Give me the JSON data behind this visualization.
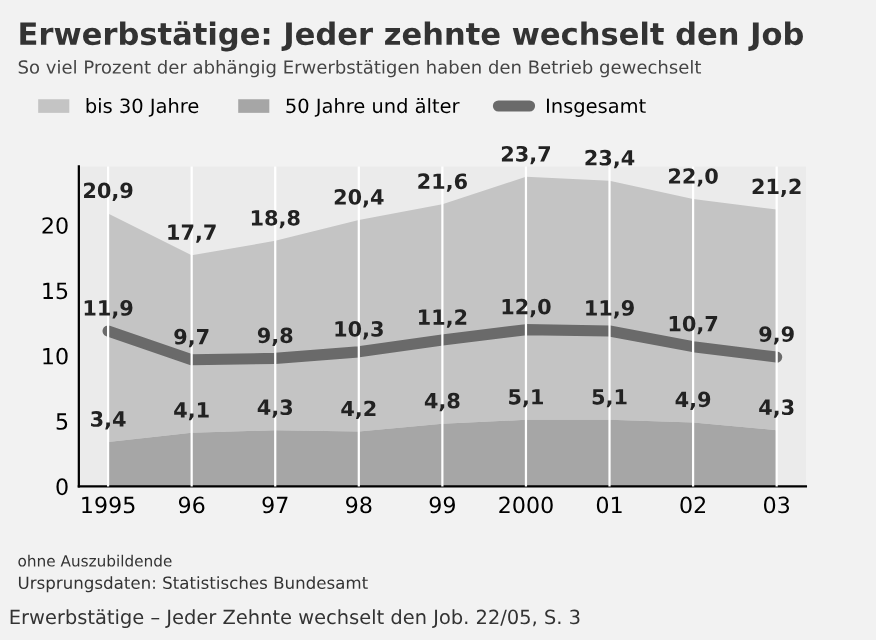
{
  "chart_data": {
    "type": "area",
    "title": "Erwerbstätige: Jeder zehnte wechselt den Job",
    "subtitle": "So viel Prozent der abhängig Erwerbstätigen haben den Betrieb gewechselt",
    "categories": [
      "1995",
      "96",
      "97",
      "98",
      "99",
      "2000",
      "01",
      "02",
      "03"
    ],
    "series": [
      {
        "name": "bis 30 Jahre",
        "color": "#c4c4c4",
        "values": [
          20.9,
          17.7,
          18.8,
          20.4,
          21.6,
          23.7,
          23.4,
          22.0,
          21.2
        ],
        "value_labels": [
          "20,9",
          "17,7",
          "18,8",
          "20,4",
          "21,6",
          "23,7",
          "23,4",
          "22,0",
          "21,2"
        ]
      },
      {
        "name": "50 Jahre und älter",
        "color": "#a6a6a6",
        "values": [
          3.4,
          4.1,
          4.3,
          4.2,
          4.8,
          5.1,
          5.1,
          4.9,
          4.3
        ],
        "value_labels": [
          "3,4",
          "4,1",
          "4,3",
          "4,2",
          "4,8",
          "5,1",
          "5,1",
          "4,9",
          "4,3"
        ]
      },
      {
        "name": "Insgesamt",
        "type": "line",
        "color": "#6a6a6a",
        "values": [
          11.9,
          9.7,
          9.8,
          10.3,
          11.2,
          12.0,
          11.9,
          10.7,
          9.9
        ],
        "value_labels": [
          "11,9",
          "9,7",
          "9,8",
          "10,3",
          "11,2",
          "12,0",
          "11,9",
          "10,7",
          "9,9"
        ]
      }
    ],
    "ylim": [
      0,
      24.5
    ],
    "yticks": [
      0,
      5,
      10,
      15,
      20
    ],
    "grid": "x",
    "legend": "top left",
    "annotations": [
      "ohne Auszubildende",
      "Ursprungsdaten: Statistisches Bundesamt",
      "Erwerbstätige – Jeder Zehnte wechselt den Job. 22/05, S. 3"
    ]
  }
}
